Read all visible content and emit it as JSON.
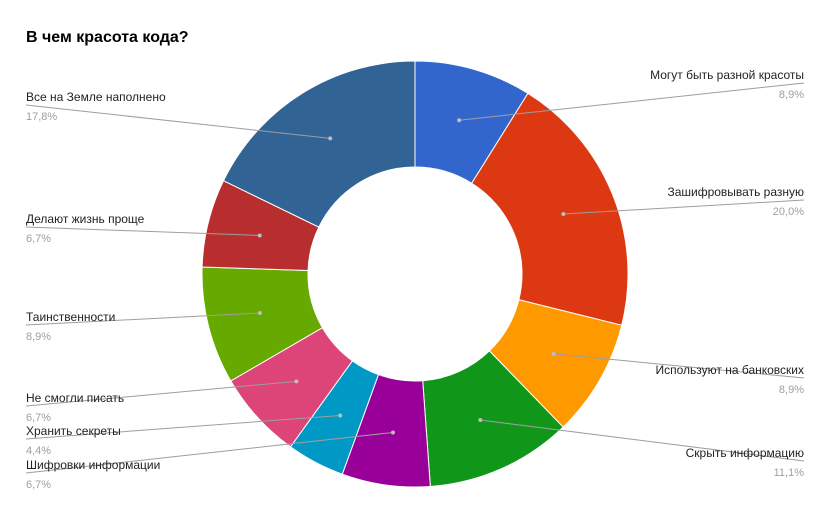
{
  "chart_data": {
    "type": "pie",
    "variant": "donut",
    "title": "В чем красота кода?",
    "slices": [
      {
        "label": "Могут быть разной красоты",
        "value": 8.9,
        "pct_label": "8,9%",
        "color": "#3366cc"
      },
      {
        "label": "Зашифровывать разную",
        "value": 20.0,
        "pct_label": "20,0%",
        "color": "#dc3912"
      },
      {
        "label": "Используют на банковских",
        "value": 8.9,
        "pct_label": "8,9%",
        "color": "#ff9900"
      },
      {
        "label": "Скрыть информацию",
        "value": 11.1,
        "pct_label": "11,1%",
        "color": "#109618"
      },
      {
        "label": "Шифровки информации",
        "value": 6.7,
        "pct_label": "6,7%",
        "color": "#990099"
      },
      {
        "label": "Хранить секреты",
        "value": 4.4,
        "pct_label": "4,4%",
        "color": "#0099c6"
      },
      {
        "label": "Не смогли писать",
        "value": 6.7,
        "pct_label": "6,7%",
        "color": "#dd4477"
      },
      {
        "label": "Таинственности",
        "value": 8.9,
        "pct_label": "8,9%",
        "color": "#66aa00"
      },
      {
        "label": "Делают жизнь проще",
        "value": 6.7,
        "pct_label": "6,7%",
        "color": "#b82e2e"
      },
      {
        "label": "Все на Земле наполнено",
        "value": 17.8,
        "pct_label": "17,8%",
        "color": "#316395"
      }
    ]
  }
}
